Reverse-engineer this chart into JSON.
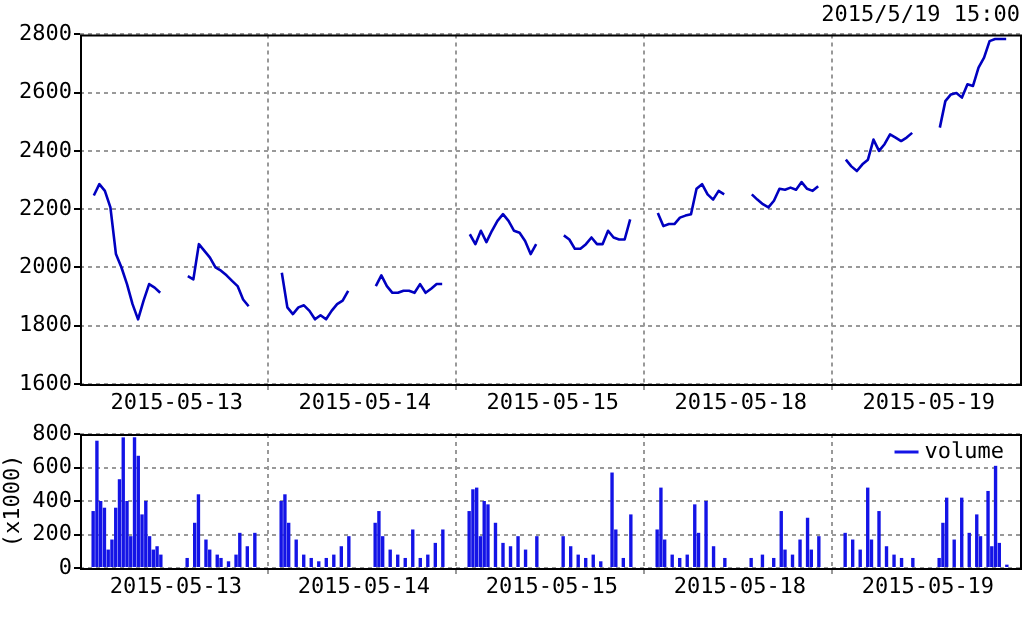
{
  "chart_data": [
    {
      "type": "line",
      "subtitle": "2015/5/19 15:00",
      "categories": [
        null,
        null,
        null,
        null,
        null,
        null,
        null,
        null,
        null,
        null,
        null,
        null,
        null,
        null,
        null,
        null,
        null,
        "2015-05-13",
        null,
        null,
        null,
        null,
        null,
        null,
        null,
        null,
        null,
        null,
        null,
        null,
        null,
        null,
        null,
        null,
        null,
        null,
        null,
        null,
        null,
        null,
        null,
        null,
        null,
        null,
        null,
        null,
        null,
        null,
        null,
        null,
        null,
        "2015-05-14",
        null,
        null,
        null,
        null,
        null,
        null,
        null,
        null,
        null,
        null,
        null,
        null,
        null,
        null,
        null,
        null,
        null,
        null,
        null,
        null,
        null,
        null,
        null,
        null,
        null,
        null,
        null,
        null,
        null,
        null,
        null,
        null,
        null,
        "2015-05-15",
        null,
        null,
        null,
        null,
        null,
        null,
        null,
        null,
        null,
        null,
        null,
        null,
        null,
        null,
        null,
        null,
        null,
        null,
        null,
        null,
        null,
        null,
        null,
        null,
        null,
        null,
        null,
        null,
        null,
        null,
        null,
        null,
        null,
        "2015-05-18",
        null,
        null,
        null,
        null,
        null,
        null,
        null,
        null,
        null,
        null,
        null,
        null,
        null,
        null,
        null,
        null,
        null,
        null,
        null,
        null,
        null,
        null,
        null,
        null,
        null,
        null,
        null,
        null,
        null,
        null,
        null,
        null,
        null,
        "2015-05-19",
        null,
        null,
        null,
        null,
        null,
        null,
        null,
        null,
        null,
        null,
        null,
        null,
        null,
        null,
        null,
        null
      ],
      "ylim": [
        1600,
        2800
      ],
      "yticks": [
        1600,
        1800,
        2000,
        2200,
        2400,
        2600,
        2800
      ],
      "grid": true,
      "legend": false,
      "marker": "none",
      "line_style": "solid",
      "series": [
        {
          "color": "#0000c0",
          "values": [
            null,
            null,
            2247,
            2286,
            2263,
            2206,
            2046,
            2000,
            1943,
            1874,
            1822,
            1886,
            1943,
            1931,
            1913,
            null,
            null,
            null,
            null,
            1970,
            1959,
            2080,
            2057,
            2034,
            2000,
            1989,
            1973,
            1954,
            1936,
            1890,
            1867,
            null,
            null,
            null,
            null,
            null,
            1982,
            1863,
            1840,
            1863,
            1870,
            1851,
            1822,
            1836,
            1822,
            1851,
            1874,
            1886,
            1920,
            null,
            null,
            null,
            null,
            1936,
            1973,
            1936,
            1913,
            1913,
            1920,
            1920,
            1913,
            1943,
            1913,
            1927,
            1943,
            1943,
            null,
            null,
            null,
            null,
            2114,
            2080,
            2126,
            2087,
            2126,
            2160,
            2183,
            2160,
            2126,
            2119,
            2091,
            2046,
            2080,
            null,
            null,
            null,
            null,
            2110,
            2096,
            2064,
            2064,
            2080,
            2103,
            2080,
            2080,
            2126,
            2103,
            2096,
            2096,
            2165,
            null,
            null,
            null,
            null,
            2187,
            2142,
            2149,
            2149,
            2171,
            2178,
            2183,
            2270,
            2286,
            2251,
            2233,
            2263,
            2251,
            null,
            null,
            null,
            null,
            2251,
            2233,
            2217,
            2206,
            2229,
            2270,
            2267,
            2274,
            2267,
            2293,
            2270,
            2263,
            2279,
            null,
            null,
            null,
            null,
            2370,
            2347,
            2331,
            2354,
            2370,
            2439,
            2400,
            2423,
            2457,
            2446,
            2434,
            2446,
            2462,
            null,
            null,
            null,
            null,
            2480,
            2571,
            2594,
            2599,
            2583,
            2629,
            2623,
            2686,
            2720,
            2777,
            2784,
            2784,
            2784,
            null,
            null
          ]
        }
      ]
    },
    {
      "type": "bar",
      "ylabel": "(x1000)",
      "categories": [
        null,
        null,
        null,
        null,
        null,
        null,
        null,
        null,
        null,
        null,
        null,
        null,
        null,
        null,
        null,
        null,
        null,
        null,
        null,
        null,
        null,
        null,
        null,
        null,
        null,
        "2015-05-13",
        null,
        null,
        null,
        null,
        null,
        null,
        null,
        null,
        null,
        null,
        null,
        null,
        null,
        null,
        null,
        null,
        null,
        null,
        null,
        null,
        null,
        null,
        null,
        null,
        null,
        null,
        null,
        null,
        null,
        null,
        null,
        null,
        null,
        null,
        null,
        null,
        null,
        null,
        null,
        null,
        null,
        null,
        null,
        null,
        null,
        null,
        null,
        null,
        null,
        "2015-05-14",
        null,
        null,
        null,
        null,
        null,
        null,
        null,
        null,
        null,
        null,
        null,
        null,
        null,
        null,
        null,
        null,
        null,
        null,
        null,
        null,
        null,
        null,
        null,
        null,
        null,
        null,
        null,
        null,
        null,
        null,
        null,
        null,
        null,
        null,
        null,
        null,
        null,
        null,
        null,
        null,
        null,
        null,
        null,
        null,
        null,
        null,
        null,
        null,
        null,
        "2015-05-15",
        null,
        null,
        null,
        null,
        null,
        null,
        null,
        null,
        null,
        null,
        null,
        null,
        null,
        null,
        null,
        null,
        null,
        null,
        null,
        null,
        null,
        null,
        null,
        null,
        null,
        null,
        null,
        null,
        null,
        null,
        null,
        null,
        null,
        null,
        null,
        null,
        null,
        null,
        null,
        null,
        null,
        null,
        null,
        null,
        null,
        null,
        null,
        null,
        null,
        "2015-05-18",
        null,
        null,
        null,
        null,
        null,
        null,
        null,
        null,
        null,
        null,
        null,
        null,
        null,
        null,
        null,
        null,
        null,
        null,
        null,
        null,
        null,
        null,
        null,
        null,
        null,
        null,
        null,
        null,
        null,
        null,
        null,
        null,
        null,
        null,
        null,
        null,
        null,
        null,
        null,
        null,
        null,
        null,
        null,
        null,
        null,
        null,
        null,
        null,
        null,
        "2015-05-19",
        null,
        null,
        null,
        null,
        null,
        null,
        null,
        null,
        null,
        null,
        null,
        null,
        null,
        null,
        null,
        null,
        null,
        null,
        null,
        null,
        null,
        null,
        null,
        null
      ],
      "ylim": [
        0,
        800
      ],
      "yticks": [
        0,
        200,
        400,
        600,
        800
      ],
      "grid": true,
      "legend": "top right",
      "series": [
        {
          "name": "volume",
          "color": "#1414e6",
          "values": [
            null,
            null,
            null,
            340,
            760,
            400,
            360,
            110,
            170,
            360,
            530,
            780,
            400,
            190,
            780,
            670,
            320,
            400,
            190,
            110,
            130,
            80,
            null,
            null,
            null,
            null,
            null,
            null,
            60,
            null,
            270,
            440,
            null,
            170,
            110,
            null,
            80,
            60,
            null,
            40,
            null,
            80,
            210,
            null,
            130,
            null,
            210,
            null,
            null,
            null,
            null,
            null,
            null,
            400,
            440,
            270,
            null,
            170,
            null,
            80,
            null,
            60,
            null,
            40,
            null,
            60,
            null,
            80,
            null,
            130,
            null,
            190,
            null,
            null,
            null,
            null,
            null,
            null,
            270,
            340,
            190,
            null,
            110,
            null,
            80,
            null,
            60,
            null,
            230,
            null,
            60,
            null,
            80,
            null,
            150,
            null,
            230,
            null,
            null,
            null,
            null,
            null,
            null,
            340,
            470,
            480,
            190,
            400,
            380,
            null,
            270,
            null,
            150,
            null,
            130,
            null,
            190,
            null,
            110,
            null,
            null,
            190,
            null,
            null,
            null,
            null,
            null,
            null,
            190,
            null,
            130,
            null,
            80,
            null,
            60,
            null,
            80,
            null,
            40,
            null,
            null,
            570,
            230,
            null,
            60,
            null,
            320,
            null,
            null,
            null,
            null,
            null,
            null,
            230,
            480,
            170,
            null,
            80,
            null,
            60,
            null,
            80,
            null,
            380,
            210,
            null,
            400,
            null,
            130,
            null,
            null,
            60,
            null,
            null,
            null,
            null,
            null,
            null,
            60,
            null,
            null,
            80,
            null,
            null,
            60,
            null,
            340,
            110,
            null,
            80,
            null,
            170,
            null,
            300,
            110,
            null,
            190,
            null,
            null,
            null,
            null,
            null,
            null,
            210,
            null,
            170,
            null,
            110,
            null,
            480,
            170,
            null,
            340,
            null,
            130,
            null,
            80,
            null,
            60,
            null,
            null,
            60,
            null,
            null,
            null,
            null,
            null,
            null,
            60,
            270,
            420,
            null,
            170,
            null,
            420,
            null,
            210,
            null,
            320,
            190,
            null,
            460,
            130,
            610,
            150,
            null,
            20,
            null,
            null,
            null
          ]
        }
      ]
    }
  ]
}
